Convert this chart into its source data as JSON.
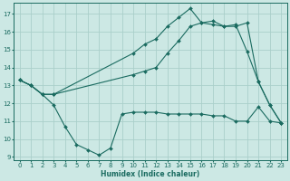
{
  "xlabel": "Humidex (Indice chaleur)",
  "bg_color": "#cce8e4",
  "grid_color": "#aacfca",
  "line_color": "#1a6b60",
  "xlim": [
    -0.5,
    23.5
  ],
  "ylim": [
    8.8,
    17.6
  ],
  "yticks": [
    9,
    10,
    11,
    12,
    13,
    14,
    15,
    16,
    17
  ],
  "xticks": [
    0,
    1,
    2,
    3,
    4,
    5,
    6,
    7,
    8,
    9,
    10,
    11,
    12,
    13,
    14,
    15,
    16,
    17,
    18,
    19,
    20,
    21,
    22,
    23
  ],
  "line1_x": [
    0,
    1,
    2,
    3,
    4,
    5,
    6,
    7,
    8,
    9,
    10,
    11,
    12,
    13,
    14,
    15,
    16,
    17,
    18,
    19,
    20,
    21,
    22,
    23
  ],
  "line1_y": [
    13.3,
    13.0,
    12.5,
    11.9,
    10.7,
    9.7,
    9.4,
    9.1,
    9.5,
    11.4,
    11.5,
    11.5,
    11.5,
    11.4,
    11.4,
    11.4,
    11.4,
    11.3,
    11.3,
    11.0,
    11.0,
    11.8,
    11.0,
    10.9
  ],
  "line2_x": [
    0,
    1,
    2,
    3,
    10,
    11,
    12,
    13,
    14,
    15,
    16,
    17,
    18,
    19,
    20,
    21,
    22,
    23
  ],
  "line2_y": [
    13.3,
    13.0,
    12.5,
    12.5,
    13.6,
    13.8,
    14.0,
    14.8,
    15.5,
    16.3,
    16.5,
    16.4,
    16.3,
    16.3,
    16.5,
    13.2,
    11.9,
    10.9
  ],
  "line3_x": [
    0,
    1,
    2,
    3,
    10,
    11,
    12,
    13,
    14,
    15,
    16,
    17,
    18,
    19,
    20,
    21,
    22,
    23
  ],
  "line3_y": [
    13.3,
    13.0,
    12.5,
    12.5,
    14.8,
    15.3,
    15.6,
    16.3,
    16.8,
    17.3,
    16.5,
    16.6,
    16.3,
    16.4,
    14.9,
    13.2,
    11.9,
    10.9
  ],
  "tick_fontsize": 5.0,
  "xlabel_fontsize": 5.5,
  "marker_size": 2.0,
  "line_width": 0.8
}
